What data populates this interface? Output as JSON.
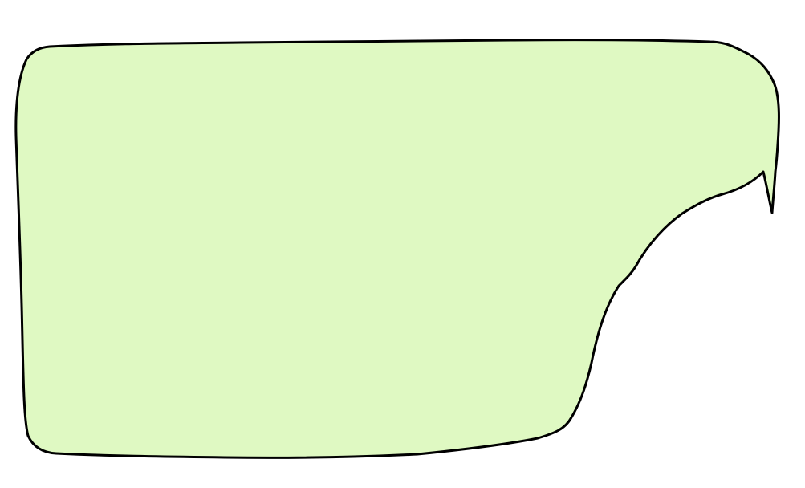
{
  "canvas": {
    "background": "#ffffff"
  },
  "shape": {
    "kind": "speech-bubble",
    "fill": "#dff9c2",
    "stroke": "#000000",
    "text": ""
  }
}
